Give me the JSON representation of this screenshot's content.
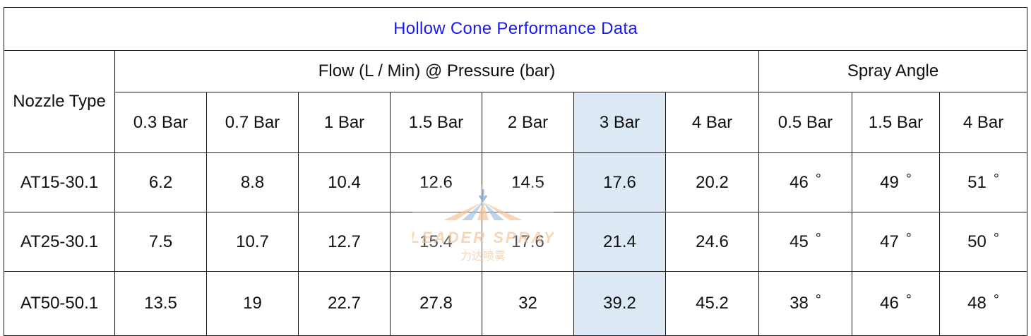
{
  "title": "Hollow Cone Performance Data",
  "headers": {
    "nozzle_type": "Nozzle Type",
    "flow_group": "Flow (L / Min) @ Pressure (bar)",
    "angle_group": "Spray Angle",
    "flow_pressures": [
      "0.3 Bar",
      "0.7 Bar",
      "1 Bar",
      "1.5 Bar",
      "2 Bar",
      "3 Bar",
      "4 Bar"
    ],
    "angle_pressures": [
      "0.5 Bar",
      "1.5 Bar",
      "4 Bar"
    ]
  },
  "highlight_column": "3 Bar",
  "highlight_color": "#dce8f4",
  "title_color": "#1a1aee",
  "rows": [
    {
      "nozzle": "AT15-30.1",
      "flow": [
        "6.2",
        "8.8",
        "10.4",
        "12.6",
        "14.5",
        "17.6",
        "20.2"
      ],
      "angle": [
        "46",
        "49",
        "51"
      ]
    },
    {
      "nozzle": "AT25-30.1",
      "flow": [
        "7.5",
        "10.7",
        "12.7",
        "15.4",
        "17.6",
        "21.4",
        "24.6"
      ],
      "angle": [
        "45",
        "47",
        "50"
      ]
    },
    {
      "nozzle": "AT50-50.1",
      "flow": [
        "13.5",
        "19",
        "22.7",
        "27.8",
        "32",
        "39.2",
        "45.2"
      ],
      "angle": [
        "38",
        "46",
        "48"
      ]
    }
  ],
  "degree_symbol": "°",
  "watermark": {
    "brand_text": "LEADER SPRAY",
    "chinese_text": "力达喷雾",
    "icon": "spray-nozzle-logo",
    "color": "#f3c9a0"
  }
}
